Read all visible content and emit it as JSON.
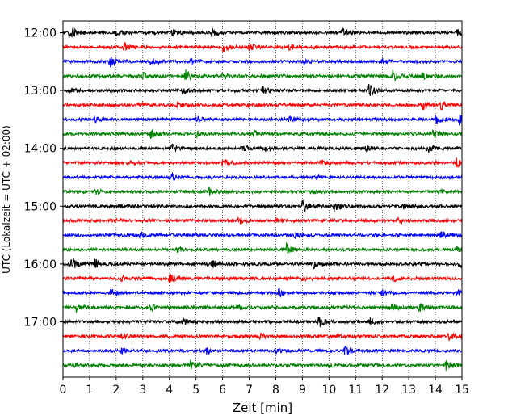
{
  "chart_data": {
    "type": "line",
    "title": "",
    "xlabel": "Zeit  [min]",
    "ylabel": "UTC (Lokalzeit = UTC + 02:00)",
    "xlim": [
      0,
      15
    ],
    "x_ticks": [
      "0",
      "1",
      "2",
      "3",
      "4",
      "5",
      "6",
      "7",
      "8",
      "9",
      "10",
      "11",
      "12",
      "13",
      "14",
      "15"
    ],
    "y_ticks": [
      {
        "label": "12:00",
        "trace": 0
      },
      {
        "label": "13:00",
        "trace": 4
      },
      {
        "label": "14:00",
        "trace": 8
      },
      {
        "label": "15:00",
        "trace": 12
      },
      {
        "label": "16:00",
        "trace": 16
      },
      {
        "label": "17:00",
        "trace": 20
      }
    ],
    "grid": "vertical dotted",
    "trace_interval_min": 15,
    "series_colors": [
      "#000000",
      "#ff0000",
      "#0000ff",
      "#008000"
    ],
    "traces": [
      {
        "start": "12:00",
        "color": "#000000",
        "events": [
          [
            0.25,
            1.0
          ],
          [
            2.0,
            0.3
          ],
          [
            4.1,
            0.4
          ],
          [
            5.6,
            0.5
          ],
          [
            10.5,
            0.7
          ],
          [
            14.8,
            0.6
          ]
        ]
      },
      {
        "start": "12:15",
        "color": "#ff0000",
        "events": [
          [
            2.3,
            0.5
          ],
          [
            6.0,
            0.8
          ],
          [
            7.0,
            0.4
          ],
          [
            8.5,
            0.3
          ]
        ]
      },
      {
        "start": "12:30",
        "color": "#0000ff",
        "events": [
          [
            1.75,
            0.8
          ],
          [
            3.3,
            0.5
          ],
          [
            4.8,
            0.4
          ],
          [
            9.0,
            0.3
          ],
          [
            12.0,
            0.3
          ]
        ]
      },
      {
        "start": "12:45",
        "color": "#008000",
        "events": [
          [
            3.0,
            0.4
          ],
          [
            4.6,
            0.9
          ],
          [
            6.0,
            0.4
          ],
          [
            12.4,
            0.8
          ],
          [
            13.5,
            0.4
          ]
        ]
      },
      {
        "start": "13:00",
        "color": "#000000",
        "events": [
          [
            0.3,
            0.3
          ],
          [
            4.5,
            0.5
          ],
          [
            7.5,
            0.6
          ],
          [
            11.5,
            1.0
          ]
        ]
      },
      {
        "start": "13:15",
        "color": "#ff0000",
        "events": [
          [
            2.8,
            0.4
          ],
          [
            4.3,
            0.4
          ],
          [
            6.9,
            0.3
          ],
          [
            13.5,
            0.8
          ],
          [
            14.2,
            0.5
          ]
        ]
      },
      {
        "start": "13:30",
        "color": "#0000ff",
        "events": [
          [
            1.2,
            0.3
          ],
          [
            5.0,
            0.4
          ],
          [
            8.5,
            0.3
          ],
          [
            14.0,
            0.6
          ],
          [
            14.9,
            0.7
          ]
        ]
      },
      {
        "start": "13:45",
        "color": "#008000",
        "events": [
          [
            3.3,
            0.6
          ],
          [
            5.0,
            0.4
          ],
          [
            7.2,
            0.5
          ],
          [
            13.9,
            0.5
          ]
        ]
      },
      {
        "start": "14:00",
        "color": "#000000",
        "events": [
          [
            4.1,
            0.5
          ],
          [
            6.7,
            0.6
          ],
          [
            7.6,
            0.4
          ],
          [
            11.4,
            0.4
          ],
          [
            13.7,
            0.6
          ]
        ]
      },
      {
        "start": "14:15",
        "color": "#ff0000",
        "events": [
          [
            2.5,
            0.3
          ],
          [
            6.0,
            0.5
          ],
          [
            9.6,
            0.3
          ],
          [
            14.8,
            0.7
          ]
        ]
      },
      {
        "start": "14:30",
        "color": "#0000ff",
        "events": [
          [
            4.0,
            0.7
          ],
          [
            9.5,
            0.3
          ]
        ]
      },
      {
        "start": "14:45",
        "color": "#008000",
        "events": [
          [
            1.2,
            0.4
          ],
          [
            5.5,
            0.5
          ],
          [
            9.3,
            0.3
          ],
          [
            14.1,
            0.4
          ]
        ]
      },
      {
        "start": "15:00",
        "color": "#000000",
        "events": [
          [
            2.2,
            0.4
          ],
          [
            9.0,
            1.0
          ],
          [
            10.2,
            0.7
          ],
          [
            12.8,
            0.3
          ]
        ]
      },
      {
        "start": "15:15",
        "color": "#ff0000",
        "events": [
          [
            2.0,
            0.3
          ],
          [
            6.6,
            0.5
          ],
          [
            8.0,
            0.3
          ],
          [
            12.6,
            0.3
          ]
        ]
      },
      {
        "start": "15:30",
        "color": "#0000ff",
        "events": [
          [
            2.9,
            0.4
          ],
          [
            8.7,
            0.3
          ],
          [
            14.2,
            0.6
          ]
        ]
      },
      {
        "start": "15:45",
        "color": "#008000",
        "events": [
          [
            4.3,
            0.3
          ],
          [
            8.4,
            0.7
          ],
          [
            14.8,
            0.6
          ]
        ]
      },
      {
        "start": "16:00",
        "color": "#000000",
        "events": [
          [
            0.3,
            1.0
          ],
          [
            1.2,
            0.6
          ],
          [
            5.6,
            0.5
          ],
          [
            9.4,
            0.6
          ],
          [
            14.9,
            0.5
          ]
        ]
      },
      {
        "start": "16:15",
        "color": "#ff0000",
        "events": [
          [
            2.2,
            0.3
          ],
          [
            4.0,
            0.6
          ],
          [
            9.0,
            0.4
          ],
          [
            12.4,
            0.4
          ]
        ]
      },
      {
        "start": "16:30",
        "color": "#0000ff",
        "events": [
          [
            1.8,
            0.5
          ],
          [
            8.1,
            0.5
          ],
          [
            12.0,
            0.3
          ],
          [
            14.8,
            0.4
          ]
        ]
      },
      {
        "start": "16:45",
        "color": "#008000",
        "events": [
          [
            0.5,
            0.6
          ],
          [
            3.3,
            0.4
          ],
          [
            6.5,
            0.3
          ],
          [
            12.3,
            0.6
          ],
          [
            13.4,
            0.7
          ]
        ]
      },
      {
        "start": "17:00",
        "color": "#000000",
        "events": [
          [
            4.5,
            0.5
          ],
          [
            9.6,
            0.9
          ],
          [
            11.5,
            0.6
          ]
        ]
      },
      {
        "start": "17:15",
        "color": "#ff0000",
        "events": [
          [
            2.2,
            0.5
          ],
          [
            7.4,
            0.4
          ],
          [
            10.3,
            0.3
          ],
          [
            14.5,
            0.5
          ]
        ]
      },
      {
        "start": "17:30",
        "color": "#0000ff",
        "events": [
          [
            2.2,
            0.3
          ],
          [
            5.4,
            0.4
          ],
          [
            8.0,
            0.3
          ],
          [
            10.6,
            0.7
          ]
        ]
      },
      {
        "start": "17:45",
        "color": "#008000",
        "events": [
          [
            0.4,
            0.3
          ],
          [
            4.8,
            0.7
          ],
          [
            10.0,
            0.3
          ],
          [
            14.4,
            0.6
          ]
        ]
      }
    ]
  }
}
